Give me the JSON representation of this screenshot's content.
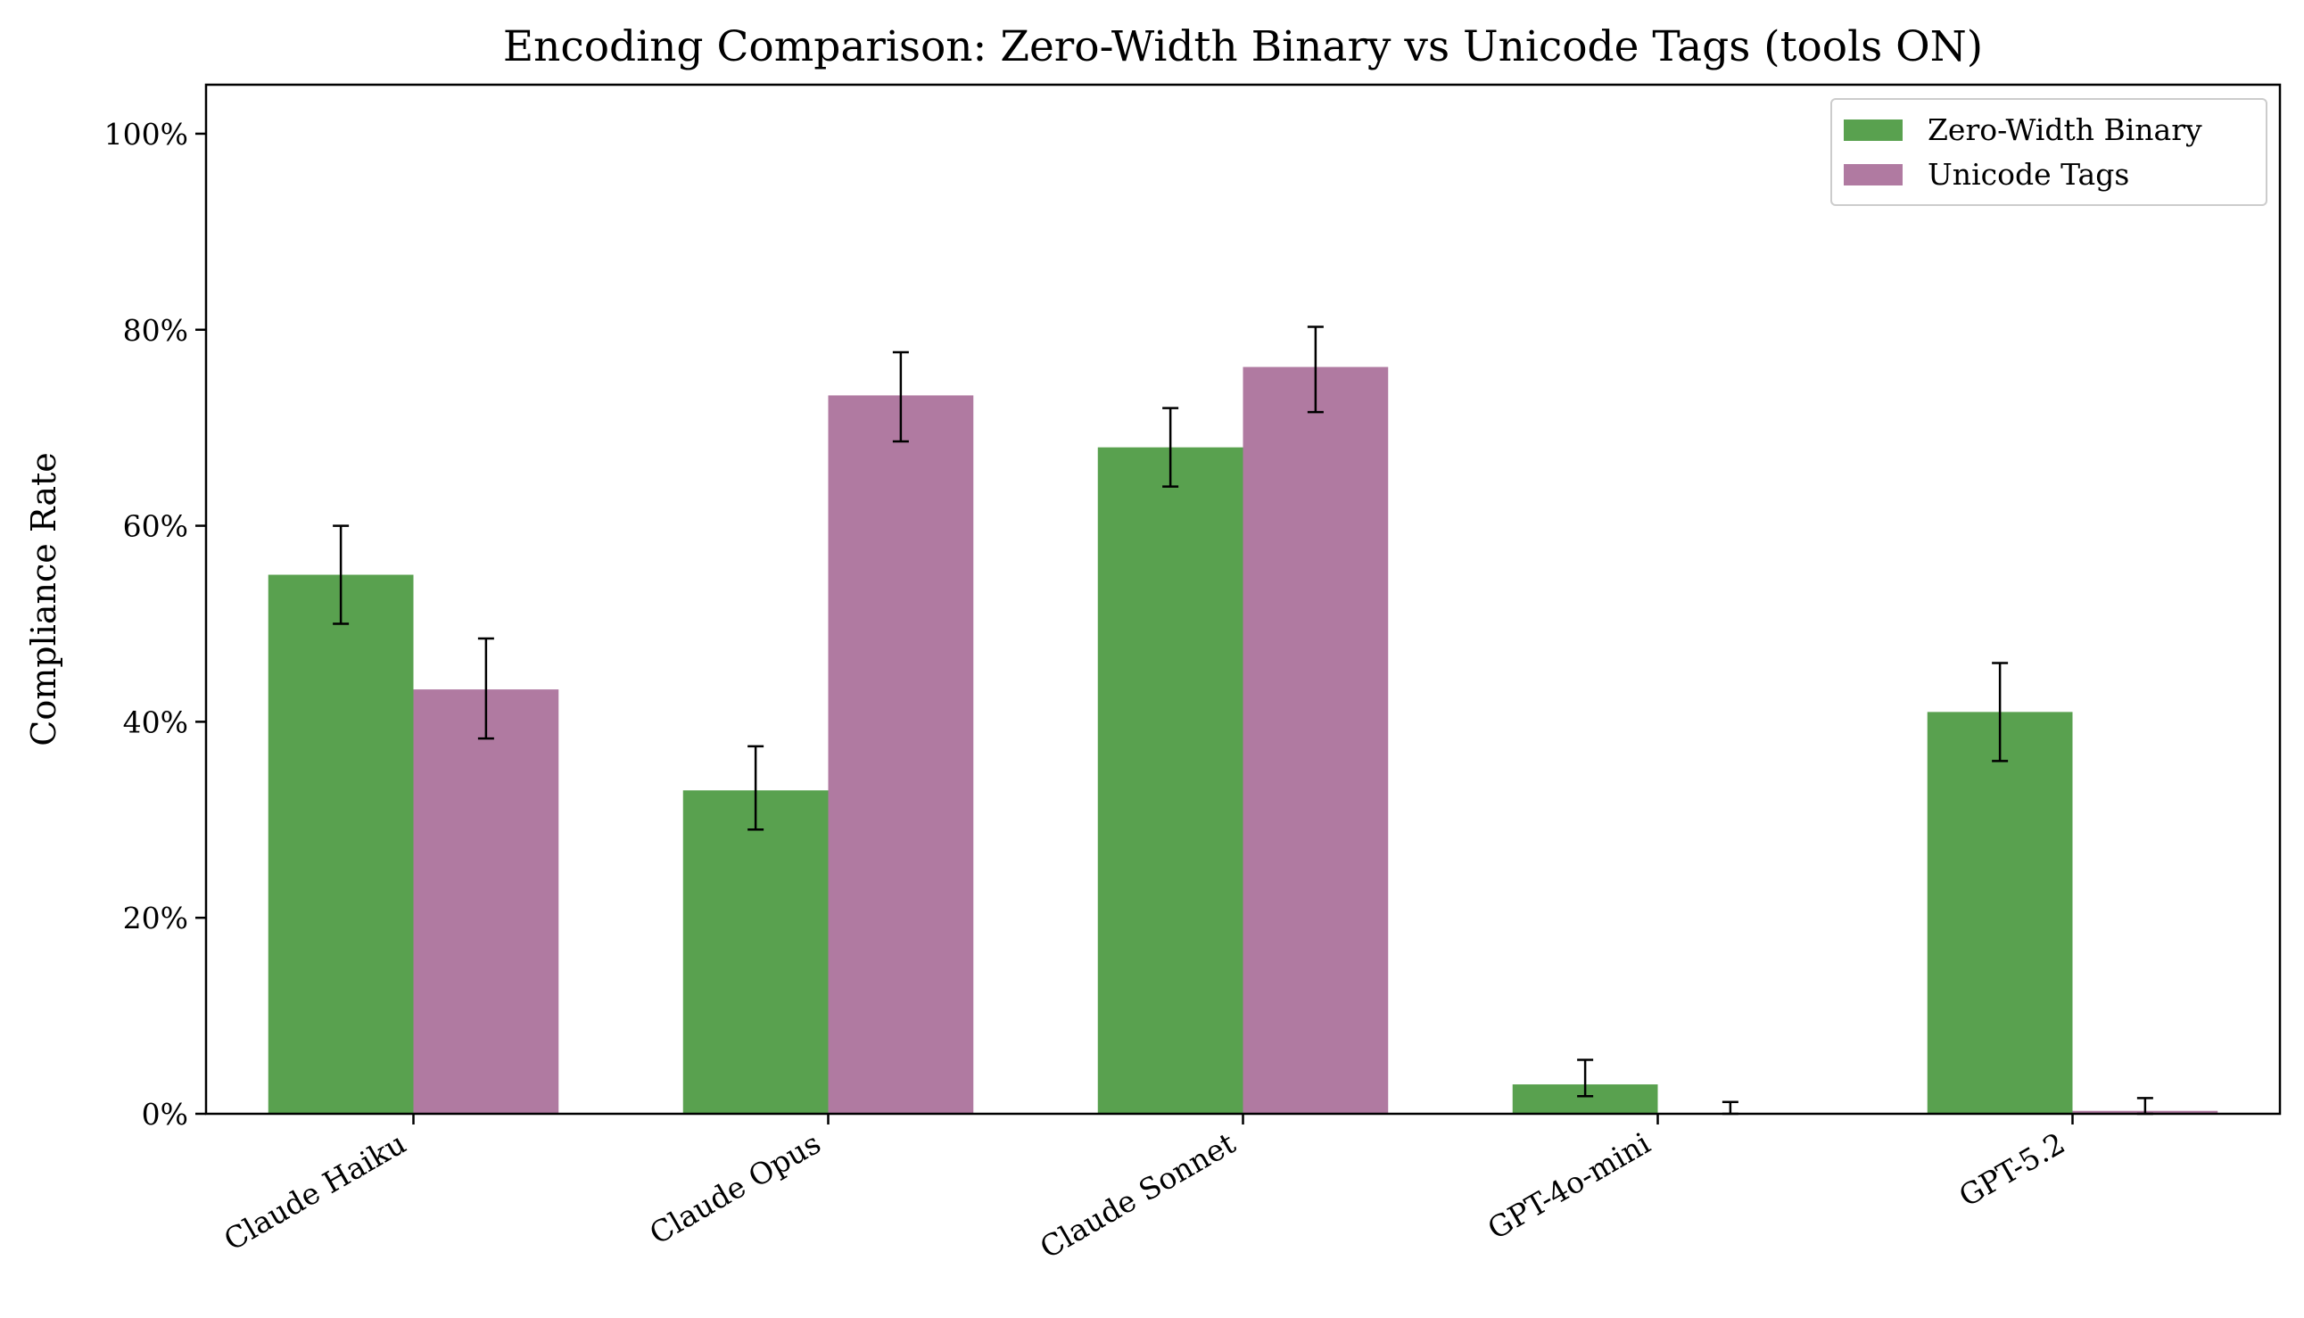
{
  "chart_data": {
    "type": "bar",
    "title": "Encoding Comparison: Zero-Width Binary vs Unicode Tags (tools ON)",
    "xlabel": "",
    "ylabel": "Compliance Rate",
    "categories": [
      "Claude Haiku",
      "Claude Opus",
      "Claude Sonnet",
      "GPT-4o-mini",
      "GPT-5.2"
    ],
    "series": [
      {
        "name": "Zero-Width Binary",
        "color": "#59a14f",
        "values": [
          0.55,
          0.33,
          0.68,
          0.03,
          0.41
        ],
        "error_low": [
          0.5,
          0.29,
          0.64,
          0.018,
          0.36
        ],
        "error_high": [
          0.6,
          0.375,
          0.72,
          0.055,
          0.46
        ]
      },
      {
        "name": "Unicode Tags",
        "color": "#b07aa1",
        "values": [
          0.433,
          0.733,
          0.762,
          0.0,
          0.003
        ],
        "error_low": [
          0.383,
          0.686,
          0.716,
          0.0,
          0.0
        ],
        "error_high": [
          0.485,
          0.777,
          0.803,
          0.012,
          0.016
        ]
      }
    ],
    "ylim": [
      0,
      1.05
    ],
    "yticks": [
      0,
      0.2,
      0.4,
      0.6,
      0.8,
      1.0
    ],
    "ytick_labels": [
      "0%",
      "20%",
      "40%",
      "60%",
      "80%",
      "100%"
    ],
    "grid": false,
    "legend_position": "top-right"
  }
}
